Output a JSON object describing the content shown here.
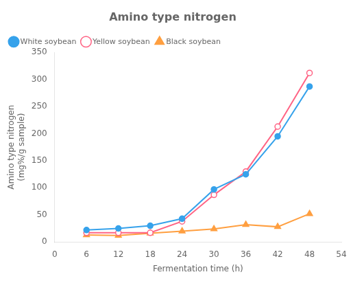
{
  "chart_data": {
    "type": "line",
    "title": "Amino type nitrogen",
    "xlabel": "Fermentation time (h)",
    "ylabel": "Amino type nitrogen\n(mg%/g sample)",
    "x": [
      6,
      12,
      18,
      24,
      30,
      36,
      42,
      48
    ],
    "series": [
      {
        "name": "White soybean",
        "marker": "circle",
        "values": [
          22,
          25,
          30,
          43,
          97,
          125,
          195,
          287
        ]
      },
      {
        "name": "Yellow soybean",
        "marker": "open_circle",
        "values": [
          17,
          17,
          17,
          38,
          87,
          130,
          213,
          312
        ]
      },
      {
        "name": "Black soybean",
        "marker": "triangle",
        "values": [
          13,
          12,
          16,
          20,
          24,
          32,
          28,
          52
        ]
      }
    ],
    "xlim": [
      0,
      54
    ],
    "ylim": [
      0,
      350
    ],
    "xticks": [
      0,
      6,
      12,
      18,
      24,
      30,
      36,
      42,
      48,
      54
    ],
    "yticks": [
      0,
      50,
      100,
      150,
      200,
      250,
      300,
      350
    ],
    "grid": false,
    "legend": "upper left"
  }
}
